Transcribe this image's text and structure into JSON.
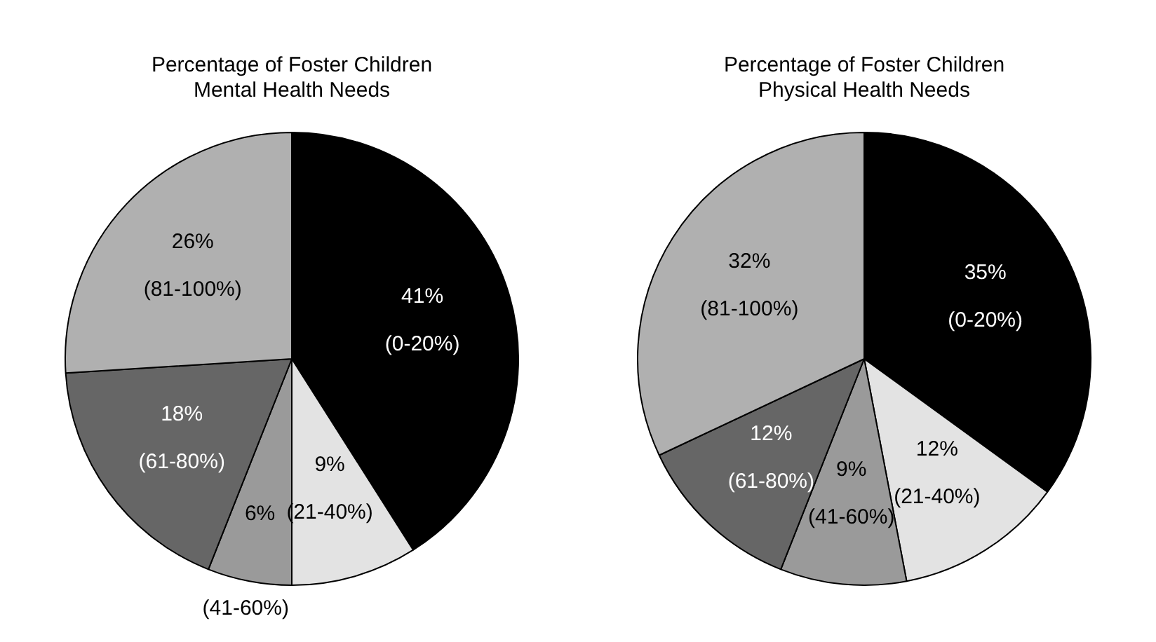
{
  "chart_data": [
    {
      "type": "pie",
      "title": "Percentage of Foster Children\nMental Health Needs",
      "categories": [
        "(0-20%)",
        "(21-40%)",
        "(41-60%)",
        "(61-80%)",
        "(81-100%)"
      ],
      "values": [
        41,
        9,
        6,
        18,
        26
      ],
      "value_labels": [
        "41%",
        "9%",
        "6%",
        "18%",
        "26%"
      ],
      "colors": [
        "#000000",
        "#e3e3e3",
        "#9a9a9a",
        "#666666",
        "#b0b0b0"
      ],
      "legend": false
    },
    {
      "type": "pie",
      "title": "Percentage of Foster Children\nPhysical Health Needs",
      "categories": [
        "(0-20%)",
        "(21-40%)",
        "(41-60%)",
        "(61-80%)",
        "(81-100%)"
      ],
      "values": [
        35,
        12,
        9,
        12,
        32
      ],
      "value_labels": [
        "35%",
        "12%",
        "9%",
        "12%",
        "32%"
      ],
      "colors": [
        "#000000",
        "#e3e3e3",
        "#9a9a9a",
        "#666666",
        "#b0b0b0"
      ],
      "legend": false
    }
  ]
}
